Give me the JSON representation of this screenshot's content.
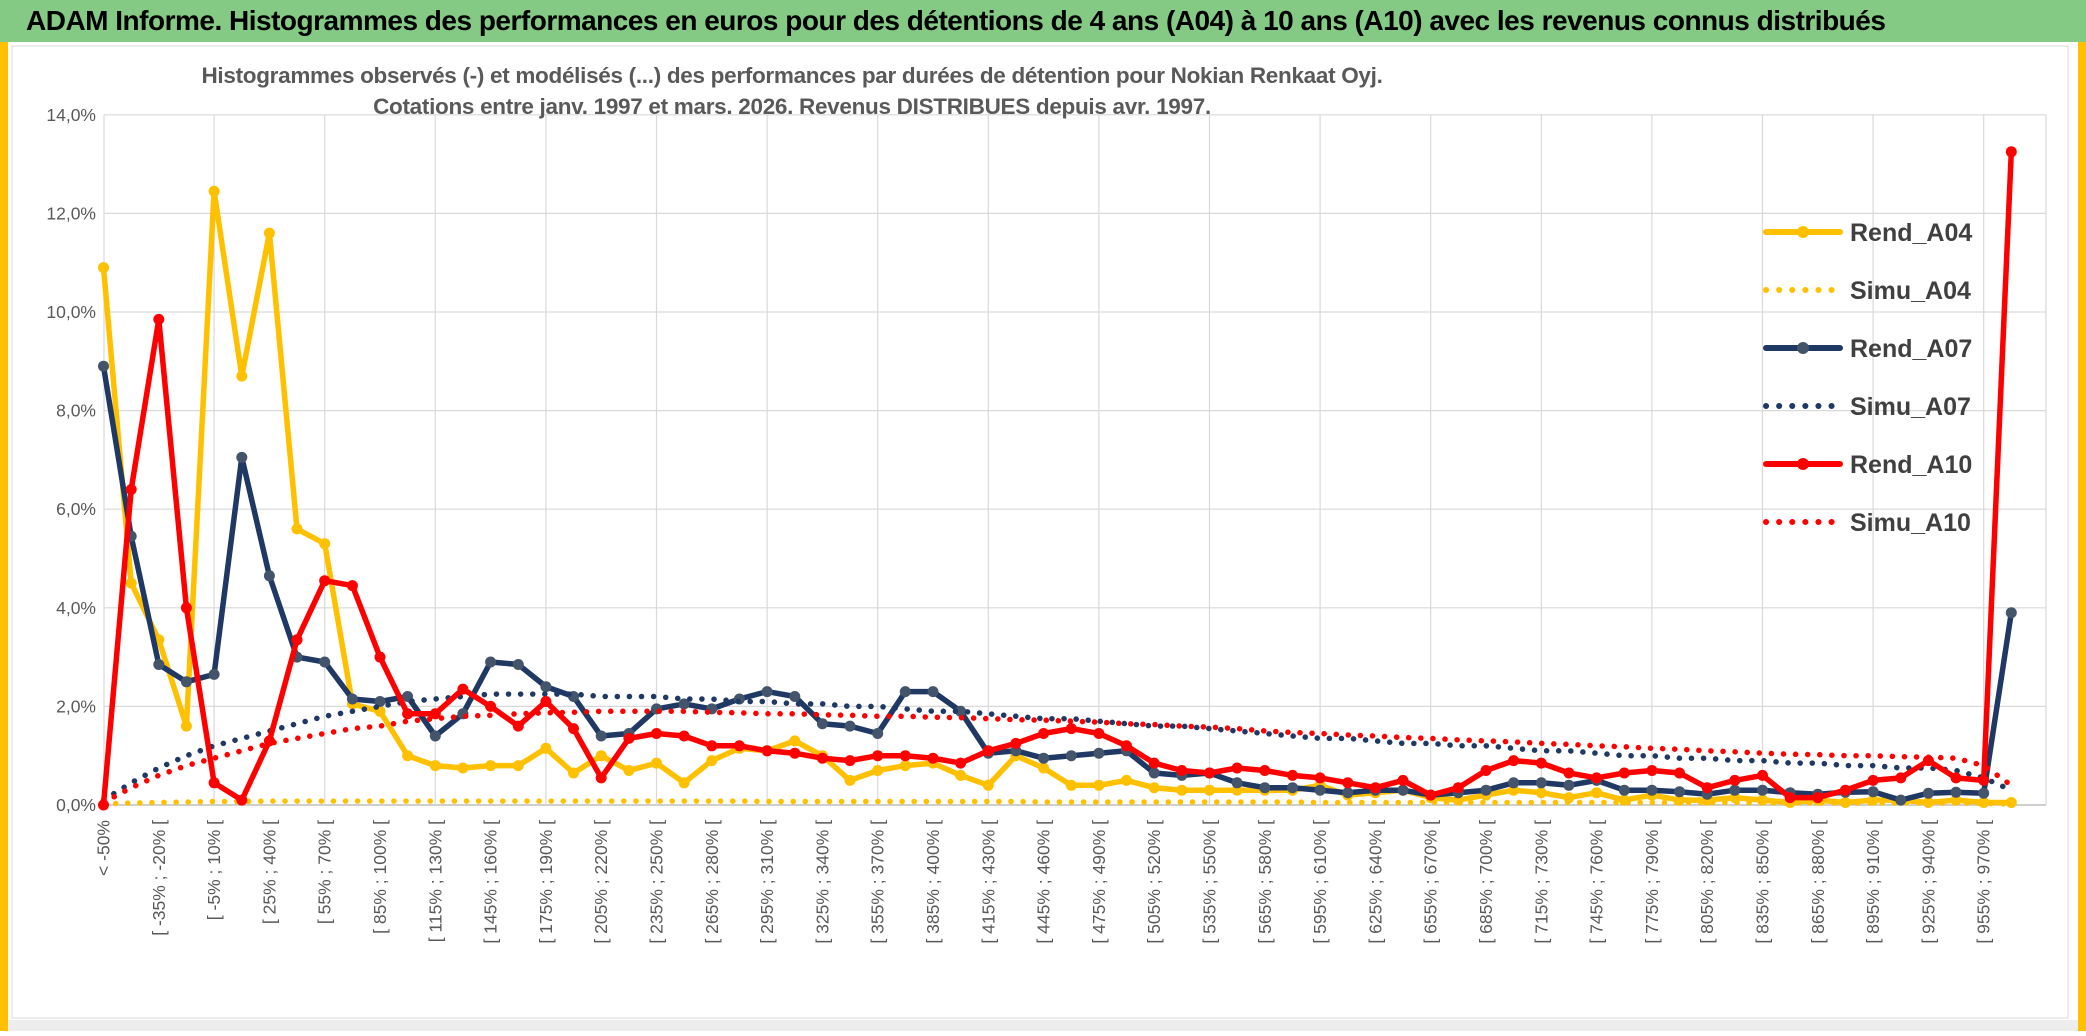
{
  "page": {
    "header_title": "ADAM Informe. Histogrammes des performances en euros pour des détentions de 4 ans (A04) à 10 ans (A10) avec les revenus connus distribués",
    "header_bg": "#84C984",
    "accent_border_color": "#FFC000",
    "text_gray": "#595959",
    "grid_color": "#D9D9D9",
    "axis_color": "#BFBFBF"
  },
  "chart_data": {
    "type": "line",
    "title_line1": "Histogrammes observés (-) et modélisés (...) des performances par durées de détention pour Nokian Renkaat Oyj.",
    "title_line2": "Cotations entre janv. 1997 et mars. 2026. Revenus DISTRIBUES depuis avr. 1997.",
    "ylim": [
      0,
      14
    ],
    "y_tick_labels": [
      "0,0%",
      "2,0%",
      "4,0%",
      "6,0%",
      "8,0%",
      "10,0%",
      "12,0%",
      "14,0%"
    ],
    "grid": true,
    "legend_position": "right",
    "n_points": 70,
    "label_every": 2,
    "x_labels": [
      "< -50%",
      "[ -35% ; -20% [",
      "[ -5% ; 10% [",
      "[ 25% ; 40% [",
      "[ 55% ; 70% [",
      "[ 85% ; 100% [",
      "[ 115% ; 130% [",
      "[ 145% ; 160% [",
      "[ 175% ; 190% [",
      "[ 205% ; 220% [",
      "[ 235% ; 250% [",
      "[ 265% ; 280% [",
      "[ 295% ; 310% [",
      "[ 325% ; 340% [",
      "[ 355% ; 370% [",
      "[ 385% ; 400% [",
      "[ 415% ; 430% [",
      "[ 445% ; 460% [",
      "[ 475% ; 490% [",
      "[ 505% ; 520% [",
      "[ 535% ; 550% [",
      "[ 565% ; 580% [",
      "[ 595% ; 610% [",
      "[ 625% ; 640% [",
      "[ 655% ; 670% [",
      "[ 685% ; 700% [",
      "[ 715% ; 730% [",
      "[ 745% ; 760% [",
      "[ 775% ; 790% [",
      "[ 805% ; 820% [",
      "[ 835% ; 850% [",
      "[ 865% ; 880% [",
      "[ 895% ; 910% [",
      "[ 925% ; 940% [",
      "[ 955% ; 970% ["
    ],
    "series": [
      {
        "name": "Rend_A04",
        "style": "solid",
        "color": "#FFC000",
        "marker_color": "#FFC000",
        "values": [
          10.9,
          4.5,
          3.35,
          1.6,
          12.45,
          8.7,
          11.6,
          5.6,
          5.3,
          2.05,
          1.9,
          1.0,
          0.8,
          0.75,
          0.8,
          0.8,
          1.15,
          0.65,
          1.0,
          0.7,
          0.85,
          0.45,
          0.9,
          1.15,
          1.1,
          1.3,
          1.0,
          0.5,
          0.7,
          0.8,
          0.85,
          0.6,
          0.4,
          1.0,
          0.75,
          0.4,
          0.4,
          0.5,
          0.35,
          0.3,
          0.3,
          0.3,
          0.3,
          0.3,
          0.4,
          0.2,
          0.25,
          0.3,
          0.15,
          0.1,
          0.2,
          0.3,
          0.25,
          0.15,
          0.25,
          0.1,
          0.2,
          0.1,
          0.1,
          0.15,
          0.1,
          0.05,
          0.1,
          0.05,
          0.1,
          0.1,
          0.05,
          0.1,
          0.05,
          0.05
        ]
      },
      {
        "name": "Simu_A04",
        "style": "dotted",
        "color": "#FFC000",
        "values": [
          0.02,
          0.04,
          0.05,
          0.06,
          0.07,
          0.07,
          0.08,
          0.08,
          0.08,
          0.08,
          0.08,
          0.08,
          0.08,
          0.08,
          0.08,
          0.08,
          0.08,
          0.08,
          0.08,
          0.08,
          0.08,
          0.08,
          0.08,
          0.08,
          0.07,
          0.07,
          0.07,
          0.07,
          0.07,
          0.07,
          0.07,
          0.07,
          0.07,
          0.07,
          0.06,
          0.06,
          0.06,
          0.06,
          0.06,
          0.06,
          0.06,
          0.06,
          0.06,
          0.06,
          0.05,
          0.05,
          0.05,
          0.05,
          0.05,
          0.05,
          0.05,
          0.05,
          0.05,
          0.05,
          0.05,
          0.05,
          0.05,
          0.05,
          0.05,
          0.05,
          0.04,
          0.04,
          0.04,
          0.04,
          0.04,
          0.04,
          0.04,
          0.04,
          0.03,
          0.02
        ]
      },
      {
        "name": "Rend_A07",
        "style": "solid",
        "color": "#1F3864",
        "marker_color": "#44546A",
        "values": [
          8.9,
          5.45,
          2.85,
          2.5,
          2.65,
          7.05,
          4.65,
          3.0,
          2.9,
          2.15,
          2.1,
          2.2,
          1.4,
          1.85,
          2.9,
          2.85,
          2.4,
          2.2,
          1.4,
          1.45,
          1.95,
          2.05,
          1.95,
          2.15,
          2.3,
          2.2,
          1.65,
          1.6,
          1.45,
          2.3,
          2.3,
          1.9,
          1.05,
          1.1,
          0.95,
          1.0,
          1.05,
          1.1,
          0.65,
          0.6,
          0.65,
          0.45,
          0.35,
          0.35,
          0.3,
          0.25,
          0.3,
          0.3,
          0.2,
          0.25,
          0.3,
          0.45,
          0.45,
          0.4,
          0.5,
          0.3,
          0.3,
          0.27,
          0.22,
          0.3,
          0.3,
          0.25,
          0.22,
          0.26,
          0.27,
          0.1,
          0.24,
          0.26,
          0.24,
          3.9
        ]
      },
      {
        "name": "Simu_A07",
        "style": "dotted",
        "color": "#1F3864",
        "values": [
          0.1,
          0.45,
          0.75,
          1.0,
          1.2,
          1.35,
          1.5,
          1.65,
          1.8,
          1.9,
          2.0,
          2.1,
          2.15,
          2.2,
          2.25,
          2.25,
          2.25,
          2.25,
          2.2,
          2.2,
          2.2,
          2.15,
          2.15,
          2.1,
          2.1,
          2.05,
          2.05,
          2.0,
          2.0,
          1.95,
          1.9,
          1.9,
          1.85,
          1.8,
          1.75,
          1.75,
          1.7,
          1.65,
          1.6,
          1.6,
          1.55,
          1.5,
          1.45,
          1.4,
          1.35,
          1.35,
          1.3,
          1.25,
          1.25,
          1.2,
          1.2,
          1.15,
          1.1,
          1.1,
          1.05,
          1.0,
          1.0,
          0.95,
          0.95,
          0.9,
          0.9,
          0.85,
          0.85,
          0.8,
          0.8,
          0.75,
          0.75,
          0.7,
          0.55,
          0.3
        ]
      },
      {
        "name": "Rend_A10",
        "style": "solid",
        "color": "#FF0000",
        "marker_color": "#FF0000",
        "values": [
          0.0,
          6.4,
          9.85,
          4.0,
          0.45,
          0.1,
          1.3,
          3.35,
          4.55,
          4.45,
          3.0,
          1.85,
          1.85,
          2.35,
          2.0,
          1.6,
          2.1,
          1.55,
          0.55,
          1.35,
          1.45,
          1.4,
          1.2,
          1.2,
          1.1,
          1.05,
          0.95,
          0.9,
          1.0,
          1.0,
          0.95,
          0.85,
          1.1,
          1.25,
          1.45,
          1.55,
          1.45,
          1.2,
          0.85,
          0.7,
          0.65,
          0.75,
          0.7,
          0.6,
          0.55,
          0.45,
          0.35,
          0.5,
          0.2,
          0.35,
          0.7,
          0.9,
          0.85,
          0.65,
          0.55,
          0.65,
          0.7,
          0.65,
          0.35,
          0.5,
          0.6,
          0.15,
          0.15,
          0.3,
          0.5,
          0.55,
          0.9,
          0.55,
          0.5,
          13.25
        ]
      },
      {
        "name": "Simu_A10",
        "style": "dotted",
        "color": "#FF0000",
        "values": [
          0.05,
          0.35,
          0.6,
          0.8,
          0.95,
          1.1,
          1.25,
          1.35,
          1.45,
          1.55,
          1.6,
          1.7,
          1.75,
          1.8,
          1.82,
          1.85,
          1.87,
          1.88,
          1.9,
          1.9,
          1.9,
          1.9,
          1.88,
          1.87,
          1.85,
          1.85,
          1.83,
          1.82,
          1.8,
          1.8,
          1.78,
          1.77,
          1.75,
          1.73,
          1.72,
          1.7,
          1.68,
          1.65,
          1.63,
          1.6,
          1.58,
          1.55,
          1.5,
          1.47,
          1.45,
          1.42,
          1.4,
          1.37,
          1.35,
          1.32,
          1.3,
          1.28,
          1.25,
          1.23,
          1.2,
          1.18,
          1.15,
          1.13,
          1.1,
          1.08,
          1.05,
          1.03,
          1.02,
          1.0,
          1.0,
          0.98,
          0.97,
          0.95,
          0.8,
          0.4
        ]
      }
    ]
  }
}
